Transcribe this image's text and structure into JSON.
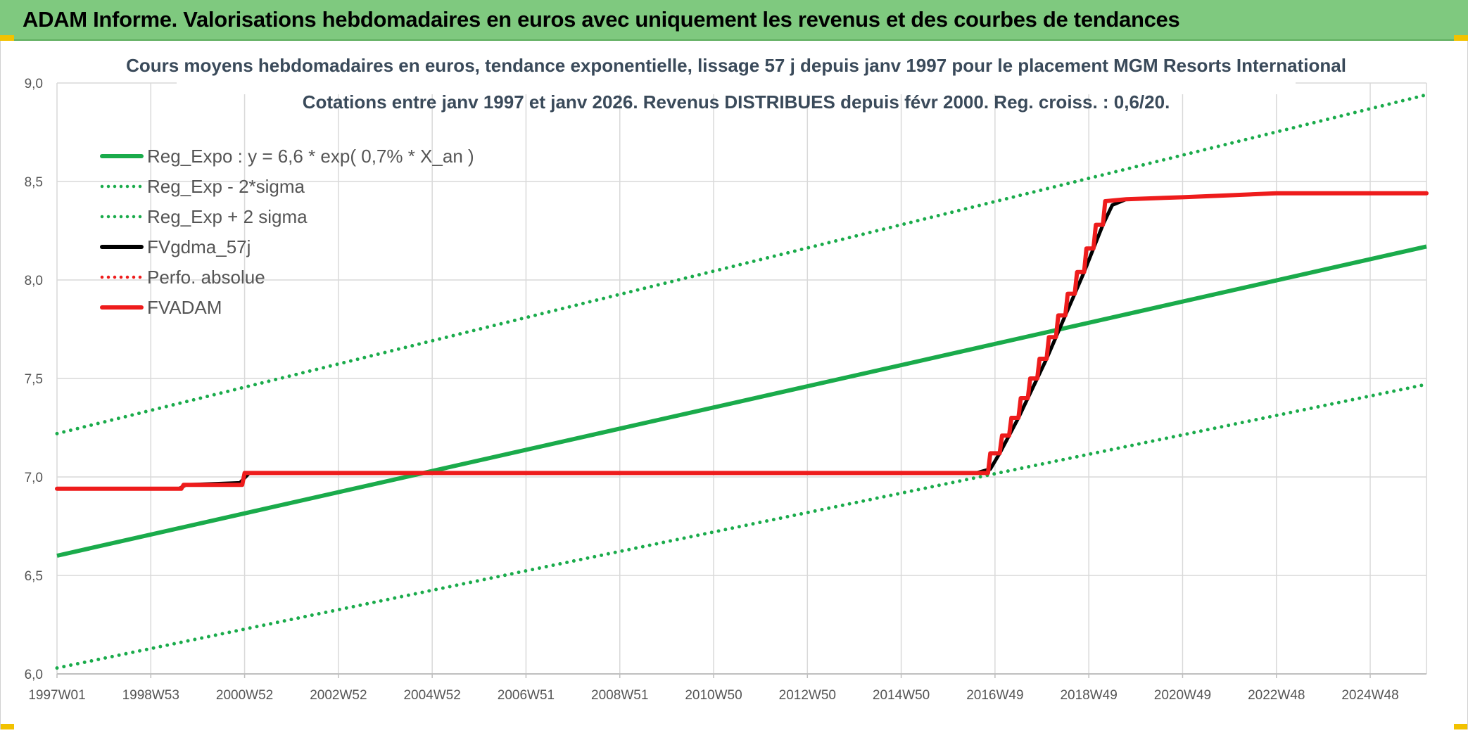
{
  "header": {
    "title": "ADAM Informe. Valorisations hebdomadaires en euros avec uniquement les revenus et des courbes de tendances"
  },
  "colors": {
    "header_bg": "#7fc97f",
    "regression": "#1aab4b",
    "adam": "#ee1c1c",
    "fv": "#000000",
    "perf": "#ee1c1c",
    "grid": "#d9d9d9"
  },
  "chart_data": {
    "type": "line",
    "title_line1": "Cours moyens hebdomadaires en euros, tendance exponentielle, lissage 57 j depuis janv 1997 pour le placement MGM Resorts International",
    "title_line2": "Cotations entre janv 1997 et janv 2026. Revenus DISTRIBUES depuis févr 2000. Reg. croiss. : 0,6/20.",
    "xlabel": "",
    "ylabel": "",
    "ylim": [
      6.0,
      9.0
    ],
    "xlim": [
      1997.0,
      2026.2
    ],
    "grid": true,
    "legend_position": "top-left",
    "y_ticks": [
      "6,0",
      "6,5",
      "7,0",
      "7,5",
      "8,0",
      "8,5",
      "9,0"
    ],
    "y_tick_values": [
      6.0,
      6.5,
      7.0,
      7.5,
      8.0,
      8.5,
      9.0
    ],
    "x_ticks": [
      "1997W01",
      "1998W53",
      "2000W52",
      "2002W52",
      "2004W52",
      "2006W51",
      "2008W51",
      "2010W50",
      "2012W50",
      "2014W50",
      "2016W49",
      "2018W49",
      "2020W49",
      "2022W48",
      "2024W48"
    ],
    "x_tick_values": [
      1997.0,
      1999.0,
      2001.0,
      2003.0,
      2005.0,
      2007.0,
      2009.0,
      2011.0,
      2013.0,
      2015.0,
      2017.0,
      2019.0,
      2021.0,
      2023.0,
      2025.0
    ],
    "legend": [
      {
        "label": "Reg_Expo : y = 6,6 * exp( 0,7% *  X_an )",
        "color": "#1aab4b",
        "style": "solid"
      },
      {
        "label": "Reg_Exp - 2*sigma",
        "color": "#1aab4b",
        "style": "dotted"
      },
      {
        "label": "Reg_Exp + 2 sigma",
        "color": "#1aab4b",
        "style": "dotted"
      },
      {
        "label": "FVgdma_57j",
        "color": "#000000",
        "style": "solid"
      },
      {
        "label": "Perfo. absolue",
        "color": "#ee1c1c",
        "style": "dotted"
      },
      {
        "label": "FVADAM",
        "color": "#ee1c1c",
        "style": "solid"
      }
    ],
    "series": [
      {
        "name": "Reg_Expo : y = 6,6 * exp( 0,7% *  X_an )",
        "style": "solid",
        "color": "#1aab4b",
        "points": [
          [
            1997.0,
            6.6
          ],
          [
            2026.2,
            8.17
          ]
        ]
      },
      {
        "name": "Reg_Exp - 2*sigma",
        "style": "dotted",
        "color": "#1aab4b",
        "points": [
          [
            1997.0,
            6.03
          ],
          [
            2026.2,
            7.47
          ]
        ]
      },
      {
        "name": "Reg_Exp + 2 sigma",
        "style": "dotted",
        "color": "#1aab4b",
        "points": [
          [
            1997.0,
            7.22
          ],
          [
            2026.2,
            8.94
          ]
        ]
      },
      {
        "name": "FVgdma_57j",
        "style": "solid",
        "color": "#000000",
        "points": [
          [
            1997.0,
            6.94
          ],
          [
            1999.6,
            6.94
          ],
          [
            1999.75,
            6.96
          ],
          [
            2000.9,
            6.97
          ],
          [
            2001.1,
            7.02
          ],
          [
            2016.6,
            7.02
          ],
          [
            2016.9,
            7.04
          ],
          [
            2017.1,
            7.12
          ],
          [
            2017.3,
            7.21
          ],
          [
            2017.5,
            7.3
          ],
          [
            2017.7,
            7.4
          ],
          [
            2017.9,
            7.5
          ],
          [
            2018.1,
            7.6
          ],
          [
            2018.3,
            7.71
          ],
          [
            2018.5,
            7.82
          ],
          [
            2018.7,
            7.93
          ],
          [
            2018.9,
            8.04
          ],
          [
            2019.1,
            8.16
          ],
          [
            2019.3,
            8.28
          ],
          [
            2019.5,
            8.38
          ],
          [
            2019.8,
            8.41
          ],
          [
            2021.0,
            8.42
          ],
          [
            2022.0,
            8.43
          ],
          [
            2023.0,
            8.44
          ],
          [
            2026.2,
            8.44
          ]
        ]
      },
      {
        "name": "FVADAM",
        "style": "solid",
        "color": "#ee1c1c",
        "points": [
          [
            1997.0,
            6.94
          ],
          [
            1999.65,
            6.94
          ],
          [
            1999.7,
            6.96
          ],
          [
            2000.95,
            6.96
          ],
          [
            2001.0,
            7.02
          ],
          [
            2016.8,
            7.02
          ],
          [
            2016.85,
            7.02
          ],
          [
            2016.9,
            7.12
          ],
          [
            2017.1,
            7.12
          ],
          [
            2017.15,
            7.21
          ],
          [
            2017.3,
            7.21
          ],
          [
            2017.35,
            7.3
          ],
          [
            2017.5,
            7.3
          ],
          [
            2017.55,
            7.4
          ],
          [
            2017.7,
            7.4
          ],
          [
            2017.75,
            7.5
          ],
          [
            2017.9,
            7.5
          ],
          [
            2017.95,
            7.6
          ],
          [
            2018.1,
            7.6
          ],
          [
            2018.15,
            7.71
          ],
          [
            2018.3,
            7.71
          ],
          [
            2018.35,
            7.82
          ],
          [
            2018.5,
            7.82
          ],
          [
            2018.55,
            7.93
          ],
          [
            2018.7,
            7.93
          ],
          [
            2018.75,
            8.04
          ],
          [
            2018.9,
            8.04
          ],
          [
            2018.95,
            8.16
          ],
          [
            2019.1,
            8.16
          ],
          [
            2019.15,
            8.28
          ],
          [
            2019.3,
            8.28
          ],
          [
            2019.35,
            8.4
          ],
          [
            2019.8,
            8.41
          ],
          [
            2021.0,
            8.42
          ],
          [
            2022.0,
            8.43
          ],
          [
            2023.0,
            8.44
          ],
          [
            2026.2,
            8.44
          ]
        ]
      }
    ]
  }
}
